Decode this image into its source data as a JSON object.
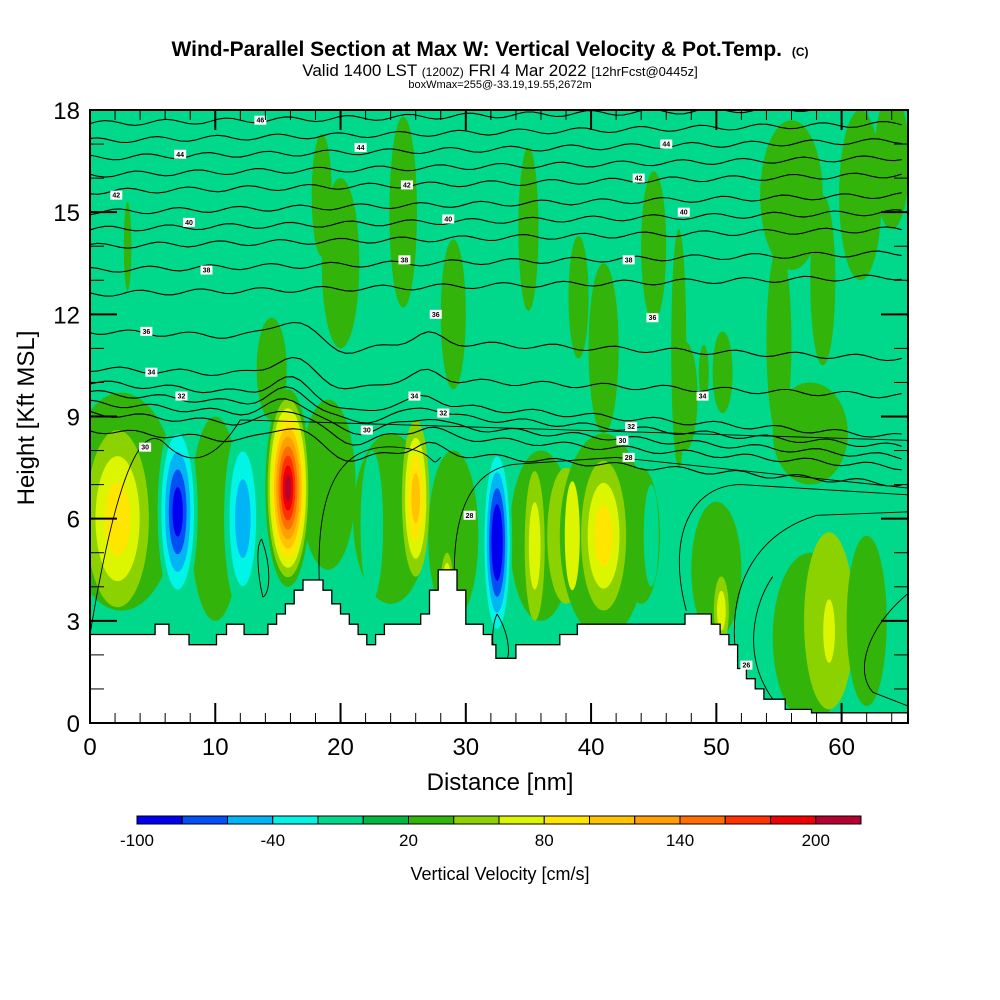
{
  "chart_data": {
    "type": "heatmap",
    "title": "Wind-Parallel Section at Max W: Vertical Velocity & Pot.Temp.",
    "title_suffix": "(C)",
    "subtitle_parts": [
      "Valid 1400 LST",
      "(1200Z)",
      "FRI 4 Mar 2022",
      "[12hrFcst@0445z]"
    ],
    "subsubtitle": "boxWmax=255@-33.19,19.55,2672m",
    "xlabel": "Distance [nm]",
    "ylabel": "Height [Kft MSL]",
    "xlim": [
      0,
      65.3
    ],
    "ylim": [
      0,
      18
    ],
    "xticks": [
      0,
      10,
      20,
      30,
      40,
      50,
      60
    ],
    "yticks": [
      0,
      3,
      6,
      9,
      12,
      15,
      18
    ],
    "x_minor_step": 2,
    "y_minor_step": 1,
    "colorbar": {
      "label": "Vertical Velocity [cm/s]",
      "levels": [
        -100,
        -80,
        -60,
        -40,
        -20,
        0,
        20,
        40,
        60,
        80,
        100,
        120,
        140,
        160,
        180,
        200,
        220
      ],
      "colors": [
        "#0000f0",
        "#0050f5",
        "#00b4f5",
        "#00f5e6",
        "#00d98c",
        "#00b93c",
        "#32b40a",
        "#8cd200",
        "#dcf500",
        "#ffe600",
        "#ffc300",
        "#ffa000",
        "#ff6e00",
        "#ff3200",
        "#f00000",
        "#b40032"
      ],
      "tick_labels": [
        "-100",
        "-40",
        "20",
        "80",
        "140",
        "200"
      ]
    },
    "background_level_color": "#00d98c",
    "features": [
      {
        "name": "updraft-core",
        "x": 15.8,
        "y": 7.0,
        "peak_cms": 200
      },
      {
        "name": "downdraft-core",
        "x": 7.0,
        "y": 6.2,
        "peak_cms": -80
      },
      {
        "name": "downdraft-core",
        "x": 12.2,
        "y": 6.0,
        "peak_cms": -60
      },
      {
        "name": "downdraft-core",
        "x": 32.5,
        "y": 5.5,
        "peak_cms": -100
      },
      {
        "name": "updraft",
        "x": 2.0,
        "y": 6.0,
        "peak_cms": 80
      },
      {
        "name": "updraft",
        "x": 26.0,
        "y": 6.5,
        "peak_cms": 80
      },
      {
        "name": "updraft",
        "x": 41.0,
        "y": 5.5,
        "peak_cms": 80
      },
      {
        "name": "updraft",
        "x": 59.0,
        "y": 2.5,
        "peak_cms": 60
      }
    ],
    "isentropes": {
      "units": "C",
      "labels": [
        {
          "text": "46",
          "x": 13.6,
          "y": 17.7
        },
        {
          "text": "44",
          "x": 7.2,
          "y": 16.7
        },
        {
          "text": "44",
          "x": 21.6,
          "y": 16.9
        },
        {
          "text": "44",
          "x": 46.0,
          "y": 17.0
        },
        {
          "text": "42",
          "x": 2.1,
          "y": 15.5
        },
        {
          "text": "42",
          "x": 25.3,
          "y": 15.8
        },
        {
          "text": "42",
          "x": 43.8,
          "y": 16.0
        },
        {
          "text": "40",
          "x": 7.9,
          "y": 14.7
        },
        {
          "text": "40",
          "x": 28.6,
          "y": 14.8
        },
        {
          "text": "40",
          "x": 47.4,
          "y": 15.0
        },
        {
          "text": "38",
          "x": 9.3,
          "y": 13.3
        },
        {
          "text": "38",
          "x": 25.1,
          "y": 13.6
        },
        {
          "text": "38",
          "x": 43.0,
          "y": 13.6
        },
        {
          "text": "36",
          "x": 4.5,
          "y": 11.5
        },
        {
          "text": "36",
          "x": 27.6,
          "y": 12.0
        },
        {
          "text": "36",
          "x": 44.9,
          "y": 11.9
        },
        {
          "text": "34",
          "x": 4.9,
          "y": 10.3
        },
        {
          "text": "34",
          "x": 25.9,
          "y": 9.6
        },
        {
          "text": "34",
          "x": 48.9,
          "y": 9.6
        },
        {
          "text": "32",
          "x": 7.3,
          "y": 9.6
        },
        {
          "text": "32",
          "x": 28.2,
          "y": 9.1
        },
        {
          "text": "32",
          "x": 43.2,
          "y": 8.7
        },
        {
          "text": "30",
          "x": 4.4,
          "y": 8.1
        },
        {
          "text": "30",
          "x": 22.1,
          "y": 8.6
        },
        {
          "text": "30",
          "x": 42.5,
          "y": 8.3
        },
        {
          "text": "28",
          "x": 30.3,
          "y": 6.1
        },
        {
          "text": "28",
          "x": 43.0,
          "y": 7.8
        },
        {
          "text": "26",
          "x": 52.4,
          "y": 1.7
        }
      ]
    },
    "terrain_profile": [
      [
        0,
        2.6
      ],
      [
        5.2,
        2.6
      ],
      [
        5.2,
        2.9
      ],
      [
        6.3,
        2.9
      ],
      [
        6.3,
        2.6
      ],
      [
        7.9,
        2.6
      ],
      [
        7.9,
        2.3
      ],
      [
        10.1,
        2.3
      ],
      [
        10.1,
        2.6
      ],
      [
        10.9,
        2.6
      ],
      [
        10.9,
        2.9
      ],
      [
        12.3,
        2.9
      ],
      [
        12.3,
        2.6
      ],
      [
        14.2,
        2.6
      ],
      [
        14.2,
        2.9
      ],
      [
        14.9,
        2.9
      ],
      [
        14.9,
        3.2
      ],
      [
        15.6,
        3.2
      ],
      [
        15.6,
        3.5
      ],
      [
        16.3,
        3.5
      ],
      [
        16.3,
        3.9
      ],
      [
        17.0,
        3.9
      ],
      [
        17.0,
        4.2
      ],
      [
        18.6,
        4.2
      ],
      [
        18.6,
        3.9
      ],
      [
        19.3,
        3.9
      ],
      [
        19.3,
        3.5
      ],
      [
        20.0,
        3.5
      ],
      [
        20.0,
        3.2
      ],
      [
        20.7,
        3.2
      ],
      [
        20.7,
        2.9
      ],
      [
        21.4,
        2.9
      ],
      [
        21.4,
        2.6
      ],
      [
        22.1,
        2.6
      ],
      [
        22.1,
        2.3
      ],
      [
        22.8,
        2.3
      ],
      [
        22.8,
        2.6
      ],
      [
        23.5,
        2.6
      ],
      [
        23.5,
        2.9
      ],
      [
        26.4,
        2.9
      ],
      [
        26.4,
        3.2
      ],
      [
        27.1,
        3.2
      ],
      [
        27.1,
        3.9
      ],
      [
        27.8,
        3.9
      ],
      [
        27.8,
        4.5
      ],
      [
        29.3,
        4.5
      ],
      [
        29.3,
        3.9
      ],
      [
        30.0,
        3.9
      ],
      [
        30.0,
        2.9
      ],
      [
        31.4,
        2.9
      ],
      [
        31.4,
        2.6
      ],
      [
        32.1,
        2.6
      ],
      [
        32.1,
        2.3
      ],
      [
        32.4,
        2.3
      ],
      [
        32.4,
        1.9
      ],
      [
        34.0,
        1.9
      ],
      [
        34.0,
        2.3
      ],
      [
        37.5,
        2.3
      ],
      [
        37.5,
        2.6
      ],
      [
        38.9,
        2.6
      ],
      [
        38.9,
        2.9
      ],
      [
        47.5,
        2.9
      ],
      [
        47.5,
        3.2
      ],
      [
        49.6,
        3.2
      ],
      [
        49.6,
        2.9
      ],
      [
        50.3,
        2.9
      ],
      [
        50.3,
        2.6
      ],
      [
        51.0,
        2.6
      ],
      [
        51.0,
        2.3
      ],
      [
        51.7,
        2.3
      ],
      [
        51.7,
        1.6
      ],
      [
        52.4,
        1.6
      ],
      [
        52.4,
        1.3
      ],
      [
        53.1,
        1.3
      ],
      [
        53.1,
        1.0
      ],
      [
        53.8,
        1.0
      ],
      [
        53.8,
        0.7
      ],
      [
        55.5,
        0.7
      ],
      [
        55.5,
        0.4
      ],
      [
        57.6,
        0.4
      ],
      [
        57.6,
        0.3
      ],
      [
        65.3,
        0.3
      ]
    ]
  }
}
